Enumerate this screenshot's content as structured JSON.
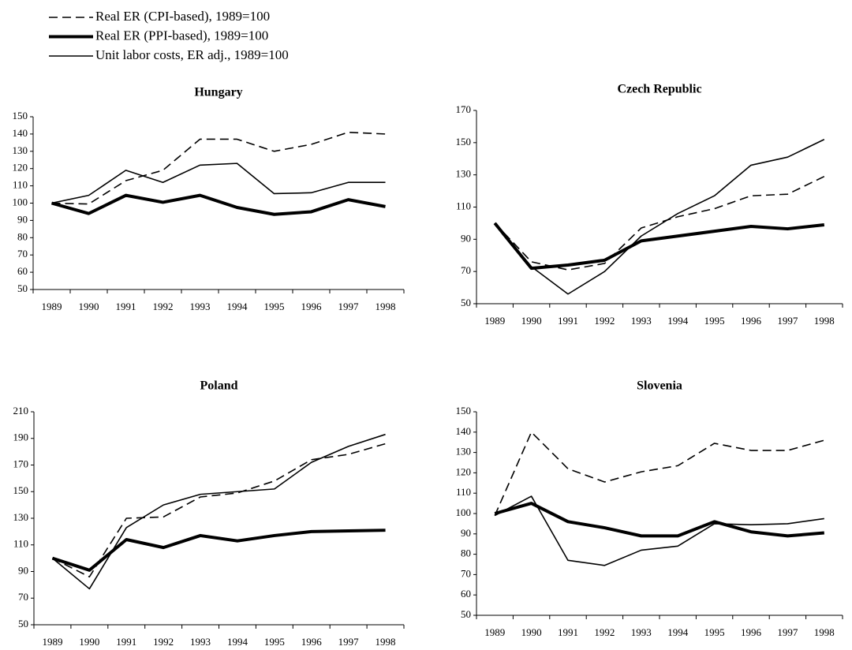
{
  "chart_data": [
    {
      "type": "line",
      "title": "Hungary",
      "categories": [
        "1989",
        "1990",
        "1991",
        "1992",
        "1993",
        "1994",
        "1995",
        "1996",
        "1997",
        "1998"
      ],
      "ylim": [
        50,
        150
      ],
      "yticks": [
        50,
        60,
        70,
        80,
        90,
        100,
        110,
        120,
        130,
        140,
        150
      ],
      "series": [
        {
          "name": "Real ER (CPI-based), 1989=100",
          "color": "#000000",
          "style": "dashed",
          "values": [
            100,
            99.5,
            113,
            119,
            137,
            137,
            130,
            134,
            141,
            140
          ]
        },
        {
          "name": "Real ER (PPI-based), 1989=100",
          "color": "#000000",
          "style": "thick",
          "values": [
            100,
            94,
            104.5,
            100.5,
            104.5,
            97.5,
            93.5,
            95,
            102,
            98
          ]
        },
        {
          "name": "Unit labor costs, ER adj., 1989=100",
          "color": "#000000",
          "style": "thin",
          "values": [
            100,
            104.5,
            119,
            112,
            122,
            123,
            105.5,
            106,
            112,
            112
          ]
        }
      ]
    },
    {
      "type": "line",
      "title": "Czech Republic",
      "categories": [
        "1989",
        "1990",
        "1991",
        "1992",
        "1993",
        "1994",
        "1995",
        "1996",
        "1997",
        "1998"
      ],
      "ylim": [
        50,
        170
      ],
      "yticks": [
        50,
        70,
        90,
        110,
        130,
        150,
        170
      ],
      "series": [
        {
          "color": "#000000",
          "style": "dashed",
          "values": [
            100,
            76,
            71,
            75,
            97,
            104,
            109,
            117,
            118,
            129
          ]
        },
        {
          "color": "#000000",
          "style": "thick",
          "values": [
            100,
            72,
            74,
            77,
            89,
            92,
            95,
            98,
            96.5,
            99
          ]
        },
        {
          "color": "#000000",
          "style": "thin",
          "values": [
            100,
            73,
            56,
            70,
            92,
            106,
            117,
            136,
            141,
            152
          ]
        }
      ]
    },
    {
      "type": "line",
      "title": "Poland",
      "categories": [
        "1989",
        "1990",
        "1991",
        "1992",
        "1993",
        "1994",
        "1995",
        "1996",
        "1997",
        "1998"
      ],
      "ylim": [
        50,
        210
      ],
      "yticks": [
        50,
        70,
        90,
        110,
        130,
        150,
        170,
        190,
        210
      ],
      "series": [
        {
          "color": "#000000",
          "style": "dashed",
          "values": [
            100,
            86,
            130,
            131,
            146,
            149,
            158,
            174,
            178,
            186
          ]
        },
        {
          "color": "#000000",
          "style": "thick",
          "values": [
            100,
            91,
            114,
            108,
            117,
            113,
            117,
            120,
            120.5,
            121
          ]
        },
        {
          "color": "#000000",
          "style": "thin",
          "values": [
            100,
            77,
            123,
            140,
            148,
            150,
            152,
            172,
            184,
            193
          ]
        }
      ]
    },
    {
      "type": "line",
      "title": "Slovenia",
      "categories": [
        "1989",
        "1990",
        "1991",
        "1992",
        "1993",
        "1994",
        "1995",
        "1996",
        "1997",
        "1998"
      ],
      "ylim": [
        50,
        150
      ],
      "yticks": [
        50,
        60,
        70,
        80,
        90,
        100,
        110,
        120,
        130,
        140,
        150
      ],
      "series": [
        {
          "color": "#000000",
          "style": "dashed",
          "values": [
            99,
            140,
            122,
            115.5,
            120.5,
            123.5,
            134.5,
            131,
            131,
            136
          ]
        },
        {
          "color": "#000000",
          "style": "thick",
          "values": [
            100,
            105,
            96,
            93,
            89,
            89,
            96,
            91,
            89,
            90.5
          ]
        },
        {
          "color": "#000000",
          "style": "thin",
          "values": [
            99,
            108.5,
            77,
            74.5,
            82,
            84,
            95,
            94.5,
            95,
            97.5
          ]
        }
      ]
    }
  ]
}
